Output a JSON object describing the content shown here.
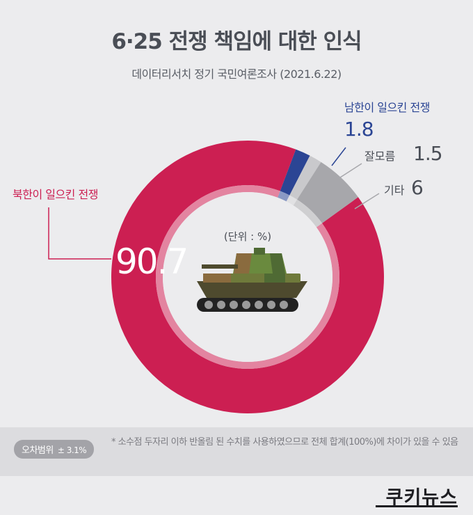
{
  "title": "6·25 전쟁 책임에 대한 인식",
  "subtitle": "데이터리서치 정기 국민여론조사 (2021.6.22)",
  "chart_data": {
    "type": "pie",
    "variant": "donut",
    "unit_label": "(단위 : %)",
    "slices": [
      {
        "label": "남한이 일으킨 전쟁",
        "value": 1.8,
        "color": "#2b4594"
      },
      {
        "label": "잘모름",
        "value": 1.5,
        "color": "#c9c9cc"
      },
      {
        "label": "기타",
        "value": 6.0,
        "color": "#a7a7ab"
      },
      {
        "label": "북한이 일으킨 전쟁",
        "value": 90.7,
        "color": "#cc1f52"
      }
    ]
  },
  "footer": {
    "margin_label": "오차범위",
    "margin_value": "± 3.1%",
    "note": "* 소수점 두자리 이하 반올림 된 수치를 사용하였으므로 전체 합계(100%)에 차이가 있을 수 있음"
  },
  "brand": {
    "logo": "쿠키뉴스"
  },
  "icons": {
    "center": "tank-icon"
  }
}
